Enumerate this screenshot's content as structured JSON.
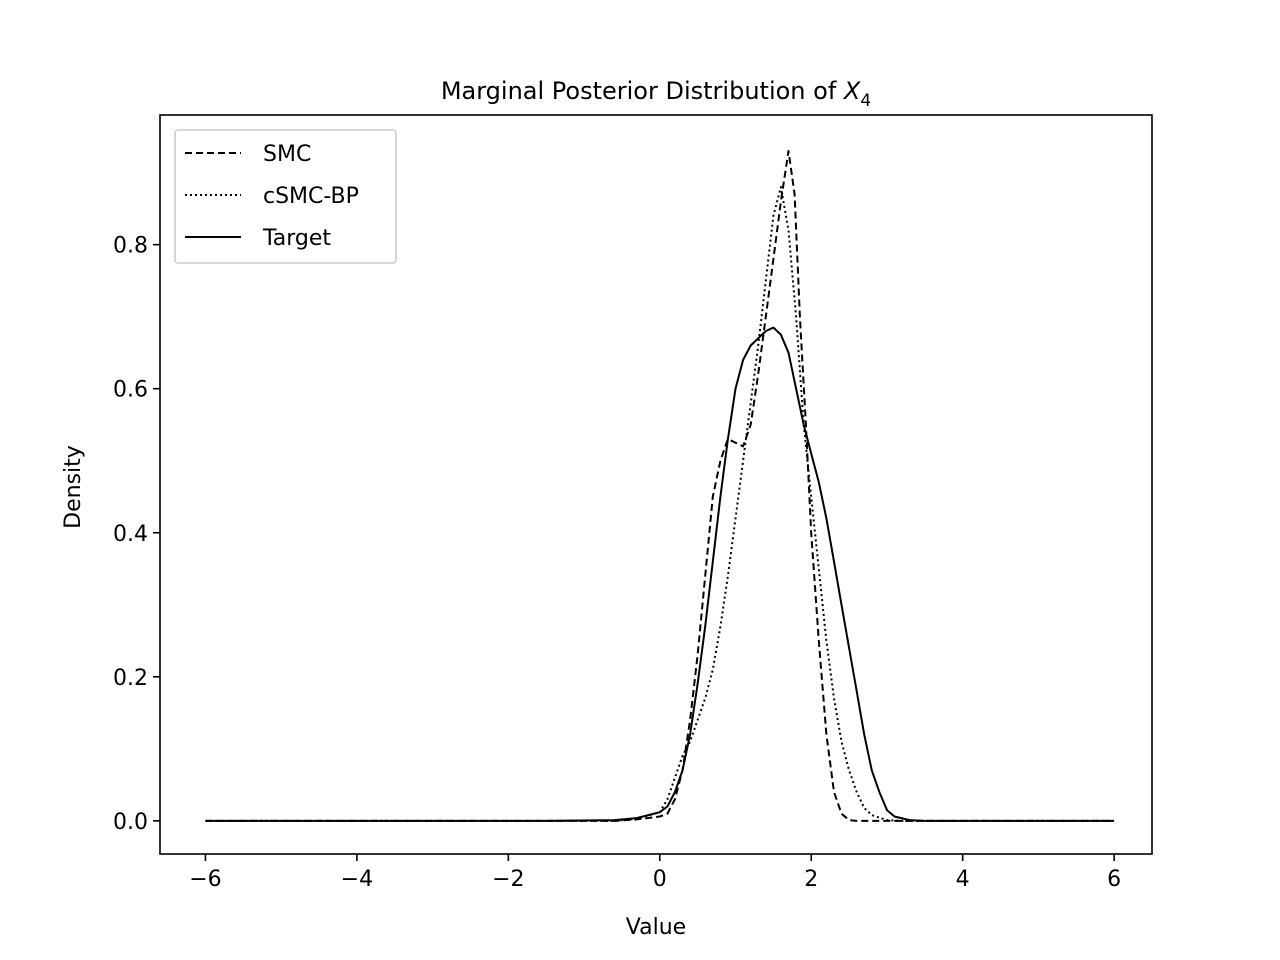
{
  "chart_data": {
    "type": "line",
    "title": "Marginal Posterior Distribution of ",
    "title_math": {
      "base": "X",
      "subscript": "4"
    },
    "xlabel": "Value",
    "ylabel": "Density",
    "xlim": [
      -6.6,
      6.5
    ],
    "ylim": [
      -0.046,
      0.98
    ],
    "xticks": [
      -6,
      -4,
      -2,
      0,
      2,
      4,
      6
    ],
    "xtick_labels": [
      "−6",
      "−4",
      "−2",
      "0",
      "2",
      "4",
      "6"
    ],
    "yticks": [
      0.0,
      0.2,
      0.4,
      0.6,
      0.8
    ],
    "ytick_labels": [
      "0.0",
      "0.2",
      "0.4",
      "0.6",
      "0.8"
    ],
    "grid": false,
    "legend": {
      "position": "upper-left"
    },
    "series": [
      {
        "name": "SMC",
        "style": "dashed",
        "color": "#000000",
        "points": [
          [
            -6,
            0
          ],
          [
            -1.5,
            0
          ],
          [
            -0.6,
            0
          ],
          [
            -0.3,
            0.002
          ],
          [
            0,
            0.006
          ],
          [
            0.1,
            0.01
          ],
          [
            0.2,
            0.03
          ],
          [
            0.3,
            0.07
          ],
          [
            0.4,
            0.14
          ],
          [
            0.5,
            0.23
          ],
          [
            0.6,
            0.34
          ],
          [
            0.7,
            0.45
          ],
          [
            0.8,
            0.5
          ],
          [
            0.9,
            0.53
          ],
          [
            1.0,
            0.525
          ],
          [
            1.1,
            0.52
          ],
          [
            1.2,
            0.55
          ],
          [
            1.3,
            0.62
          ],
          [
            1.4,
            0.7
          ],
          [
            1.5,
            0.78
          ],
          [
            1.6,
            0.86
          ],
          [
            1.7,
            0.93
          ],
          [
            1.78,
            0.87
          ],
          [
            1.85,
            0.7
          ],
          [
            1.93,
            0.55
          ],
          [
            2.0,
            0.4
          ],
          [
            2.1,
            0.25
          ],
          [
            2.2,
            0.12
          ],
          [
            2.3,
            0.04
          ],
          [
            2.4,
            0.01
          ],
          [
            2.5,
            0.001
          ],
          [
            2.6,
            0
          ],
          [
            6,
            0
          ]
        ]
      },
      {
        "name": "cSMC-BP",
        "style": "dotted",
        "color": "#000000",
        "points": [
          [
            -6,
            0
          ],
          [
            -1.5,
            0
          ],
          [
            -0.6,
            0
          ],
          [
            -0.3,
            0.003
          ],
          [
            0,
            0.012
          ],
          [
            0.1,
            0.03
          ],
          [
            0.2,
            0.06
          ],
          [
            0.3,
            0.09
          ],
          [
            0.4,
            0.11
          ],
          [
            0.5,
            0.14
          ],
          [
            0.6,
            0.17
          ],
          [
            0.7,
            0.21
          ],
          [
            0.8,
            0.27
          ],
          [
            0.9,
            0.34
          ],
          [
            1.0,
            0.42
          ],
          [
            1.1,
            0.5
          ],
          [
            1.2,
            0.58
          ],
          [
            1.3,
            0.66
          ],
          [
            1.4,
            0.75
          ],
          [
            1.5,
            0.84
          ],
          [
            1.6,
            0.88
          ],
          [
            1.7,
            0.82
          ],
          [
            1.8,
            0.7
          ],
          [
            1.9,
            0.55
          ],
          [
            2.0,
            0.45
          ],
          [
            2.1,
            0.35
          ],
          [
            2.2,
            0.25
          ],
          [
            2.3,
            0.17
          ],
          [
            2.4,
            0.11
          ],
          [
            2.5,
            0.07
          ],
          [
            2.6,
            0.04
          ],
          [
            2.7,
            0.018
          ],
          [
            2.8,
            0.008
          ],
          [
            3.0,
            0.001
          ],
          [
            3.2,
            0
          ],
          [
            6,
            0
          ]
        ]
      },
      {
        "name": "Target",
        "style": "solid",
        "color": "#000000",
        "points": [
          [
            -6,
            0
          ],
          [
            -1.5,
            0
          ],
          [
            -0.6,
            0.001
          ],
          [
            -0.3,
            0.004
          ],
          [
            0,
            0.012
          ],
          [
            0.1,
            0.02
          ],
          [
            0.2,
            0.04
          ],
          [
            0.3,
            0.07
          ],
          [
            0.4,
            0.12
          ],
          [
            0.5,
            0.19
          ],
          [
            0.6,
            0.27
          ],
          [
            0.7,
            0.36
          ],
          [
            0.8,
            0.45
          ],
          [
            0.9,
            0.53
          ],
          [
            1.0,
            0.6
          ],
          [
            1.1,
            0.64
          ],
          [
            1.2,
            0.66
          ],
          [
            1.3,
            0.67
          ],
          [
            1.4,
            0.68
          ],
          [
            1.5,
            0.685
          ],
          [
            1.6,
            0.675
          ],
          [
            1.7,
            0.65
          ],
          [
            1.8,
            0.6
          ],
          [
            1.9,
            0.55
          ],
          [
            2.0,
            0.51
          ],
          [
            2.1,
            0.47
          ],
          [
            2.2,
            0.42
          ],
          [
            2.3,
            0.36
          ],
          [
            2.4,
            0.3
          ],
          [
            2.5,
            0.24
          ],
          [
            2.6,
            0.18
          ],
          [
            2.7,
            0.12
          ],
          [
            2.8,
            0.07
          ],
          [
            2.9,
            0.04
          ],
          [
            3.0,
            0.015
          ],
          [
            3.1,
            0.006
          ],
          [
            3.3,
            0.001
          ],
          [
            3.5,
            0
          ],
          [
            6,
            0
          ]
        ]
      }
    ]
  }
}
